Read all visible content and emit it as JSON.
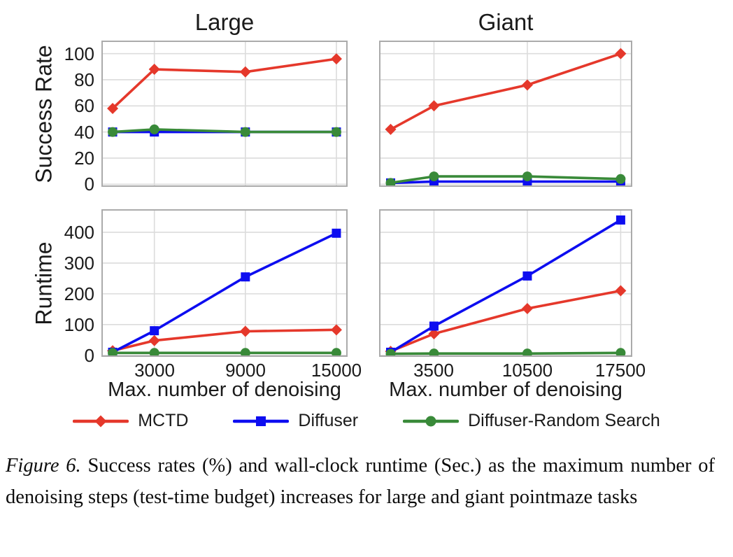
{
  "colors": {
    "grid": "#dcdcdc",
    "border": "#ababab",
    "text": "#1a1a1a",
    "red": "#e5382b",
    "blue": "#0d0df0",
    "green": "#398a39"
  },
  "chart_data": [
    {
      "id": "large-success",
      "type": "line",
      "title": "Large",
      "ylabel": "Success Rate",
      "xlabel": "",
      "xlim": [
        -490,
        15740
      ],
      "ylim": [
        -2,
        110
      ],
      "xticks": [
        {
          "v": 3000,
          "label": "3000"
        },
        {
          "v": 9000,
          "label": "9000"
        },
        {
          "v": 15000,
          "label": "15000"
        }
      ],
      "yticks": [
        {
          "v": 0,
          "label": "0"
        },
        {
          "v": 20,
          "label": "20"
        },
        {
          "v": 40,
          "label": "40"
        },
        {
          "v": 60,
          "label": "60"
        },
        {
          "v": 80,
          "label": "80"
        },
        {
          "v": 100,
          "label": "100"
        }
      ],
      "series": [
        {
          "name": "MCTD",
          "x": [
            250,
            3000,
            9000,
            15000
          ],
          "y": [
            58,
            88,
            86,
            96
          ]
        },
        {
          "name": "Diffuser",
          "x": [
            250,
            3000,
            9000,
            15000
          ],
          "y": [
            40,
            40,
            40,
            40
          ]
        },
        {
          "name": "Diffuser-Random Search",
          "x": [
            250,
            3000,
            9000,
            15000
          ],
          "y": [
            40,
            42,
            40,
            40
          ]
        }
      ]
    },
    {
      "id": "giant-success",
      "type": "line",
      "title": "Giant",
      "ylabel": "",
      "xlabel": "",
      "xlim": [
        -615,
        18370
      ],
      "ylim": [
        -2,
        110
      ],
      "xticks": [
        {
          "v": 3500,
          "label": "3500"
        },
        {
          "v": 10500,
          "label": "10500"
        },
        {
          "v": 17500,
          "label": "17500"
        }
      ],
      "yticks": [
        {
          "v": 0,
          "label": "0"
        },
        {
          "v": 20,
          "label": "20"
        },
        {
          "v": 40,
          "label": "40"
        },
        {
          "v": 60,
          "label": "60"
        },
        {
          "v": 80,
          "label": "80"
        },
        {
          "v": 100,
          "label": "100"
        }
      ],
      "series": [
        {
          "name": "MCTD",
          "x": [
            250,
            3500,
            10500,
            17500
          ],
          "y": [
            42,
            60,
            76,
            100
          ]
        },
        {
          "name": "Diffuser",
          "x": [
            250,
            3500,
            10500,
            17500
          ],
          "y": [
            1,
            2,
            2,
            2
          ]
        },
        {
          "name": "Diffuser-Random Search",
          "x": [
            250,
            3500,
            10500,
            17500
          ],
          "y": [
            1,
            6,
            6,
            4
          ]
        }
      ]
    },
    {
      "id": "large-runtime",
      "type": "line",
      "title": "",
      "ylabel": "Runtime",
      "xlabel": "Max. number of denoising",
      "xlim": [
        -490,
        15740
      ],
      "ylim": [
        -5,
        475
      ],
      "xticks": [
        {
          "v": 3000,
          "label": "3000"
        },
        {
          "v": 9000,
          "label": "9000"
        },
        {
          "v": 15000,
          "label": "15000"
        }
      ],
      "yticks": [
        {
          "v": 0,
          "label": "0"
        },
        {
          "v": 100,
          "label": "100"
        },
        {
          "v": 200,
          "label": "200"
        },
        {
          "v": 300,
          "label": "300"
        },
        {
          "v": 400,
          "label": "400"
        }
      ],
      "series": [
        {
          "name": "MCTD",
          "x": [
            250,
            3000,
            9000,
            15000
          ],
          "y": [
            15,
            48,
            78,
            83
          ]
        },
        {
          "name": "Diffuser",
          "x": [
            250,
            3000,
            9000,
            15000
          ],
          "y": [
            10,
            80,
            255,
            397
          ]
        },
        {
          "name": "Diffuser-Random Search",
          "x": [
            250,
            3000,
            9000,
            15000
          ],
          "y": [
            8,
            8,
            8,
            8
          ]
        }
      ]
    },
    {
      "id": "giant-runtime",
      "type": "line",
      "title": "",
      "ylabel": "",
      "xlabel": "Max. number of denoising",
      "xlim": [
        -615,
        18370
      ],
      "ylim": [
        -5,
        475
      ],
      "xticks": [
        {
          "v": 3500,
          "label": "3500"
        },
        {
          "v": 10500,
          "label": "10500"
        },
        {
          "v": 17500,
          "label": "17500"
        }
      ],
      "yticks": [
        {
          "v": 0,
          "label": "0"
        },
        {
          "v": 100,
          "label": "100"
        },
        {
          "v": 200,
          "label": "200"
        },
        {
          "v": 300,
          "label": "300"
        },
        {
          "v": 400,
          "label": "400"
        }
      ],
      "series": [
        {
          "name": "MCTD",
          "x": [
            250,
            3500,
            10500,
            17500
          ],
          "y": [
            13,
            70,
            152,
            210
          ]
        },
        {
          "name": "Diffuser",
          "x": [
            250,
            3500,
            10500,
            17500
          ],
          "y": [
            10,
            95,
            258,
            440
          ]
        },
        {
          "name": "Diffuser-Random Search",
          "x": [
            250,
            3500,
            10500,
            17500
          ],
          "y": [
            5,
            6,
            6,
            8
          ]
        }
      ]
    }
  ],
  "legend": {
    "entries": [
      {
        "name": "MCTD",
        "color": "#e5382b",
        "marker": "diamond"
      },
      {
        "name": "Diffuser",
        "color": "#0d0df0",
        "marker": "square"
      },
      {
        "name": "Diffuser-Random Search",
        "color": "#398a39",
        "marker": "circle"
      }
    ]
  },
  "caption": {
    "label": "Figure 6.",
    "text": "Success rates (%) and wall-clock runtime (Sec.) as the maximum number of denoising steps (test-time budget) increases for large and giant pointmaze tasks"
  }
}
